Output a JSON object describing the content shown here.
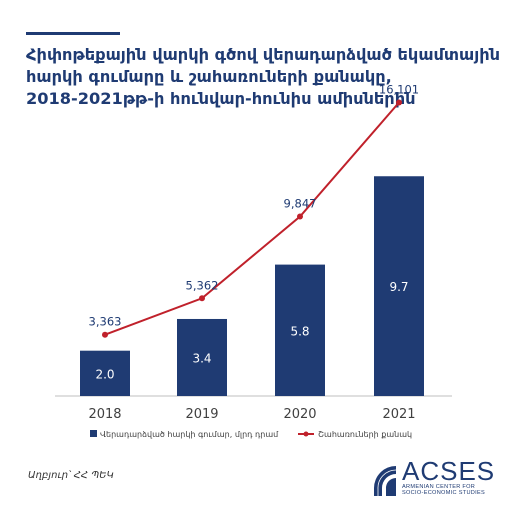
{
  "title_lines": [
    "Հիփոթեքային վարկի գծով վերադարձված եկամտային",
    "հարկի գումարը և շահառուների քանակը,",
    "2018-2021թթ-ի հունվար-հունիս ամիսներին"
  ],
  "source": "Աղբյուր՝ ՀՀ ՊԵԿ",
  "logo": {
    "name": "ACSES",
    "subtitle_lines": [
      "ARMENIAN CENTER FOR",
      "SOCIO-ECONOMIC STUDIES"
    ]
  },
  "colors": {
    "bar": "#1f3b73",
    "line": "#c0212b",
    "text": "#1f3b73",
    "axis": "#bfbfbf"
  },
  "chart_data": {
    "type": "bar+line",
    "categories": [
      "2018",
      "2019",
      "2020",
      "2021"
    ],
    "series": [
      {
        "name": "Վերադարձված հարկի գումար, մլրդ դրամ",
        "type": "bar",
        "values": [
          2.0,
          3.4,
          5.8,
          9.7
        ],
        "labels": [
          "2.0",
          "3.4",
          "5.8",
          "9.7"
        ]
      },
      {
        "name": "Շահառուների քանակ",
        "type": "line",
        "values": [
          3363,
          5362,
          9847,
          16101
        ],
        "labels": [
          "3,363",
          "5,362",
          "9,847",
          "16,101"
        ]
      }
    ],
    "bar_axis_range": [
      0,
      11.3
    ],
    "line_axis_range": [
      0,
      22000
    ],
    "grid": false,
    "legend_position": "bottom"
  }
}
